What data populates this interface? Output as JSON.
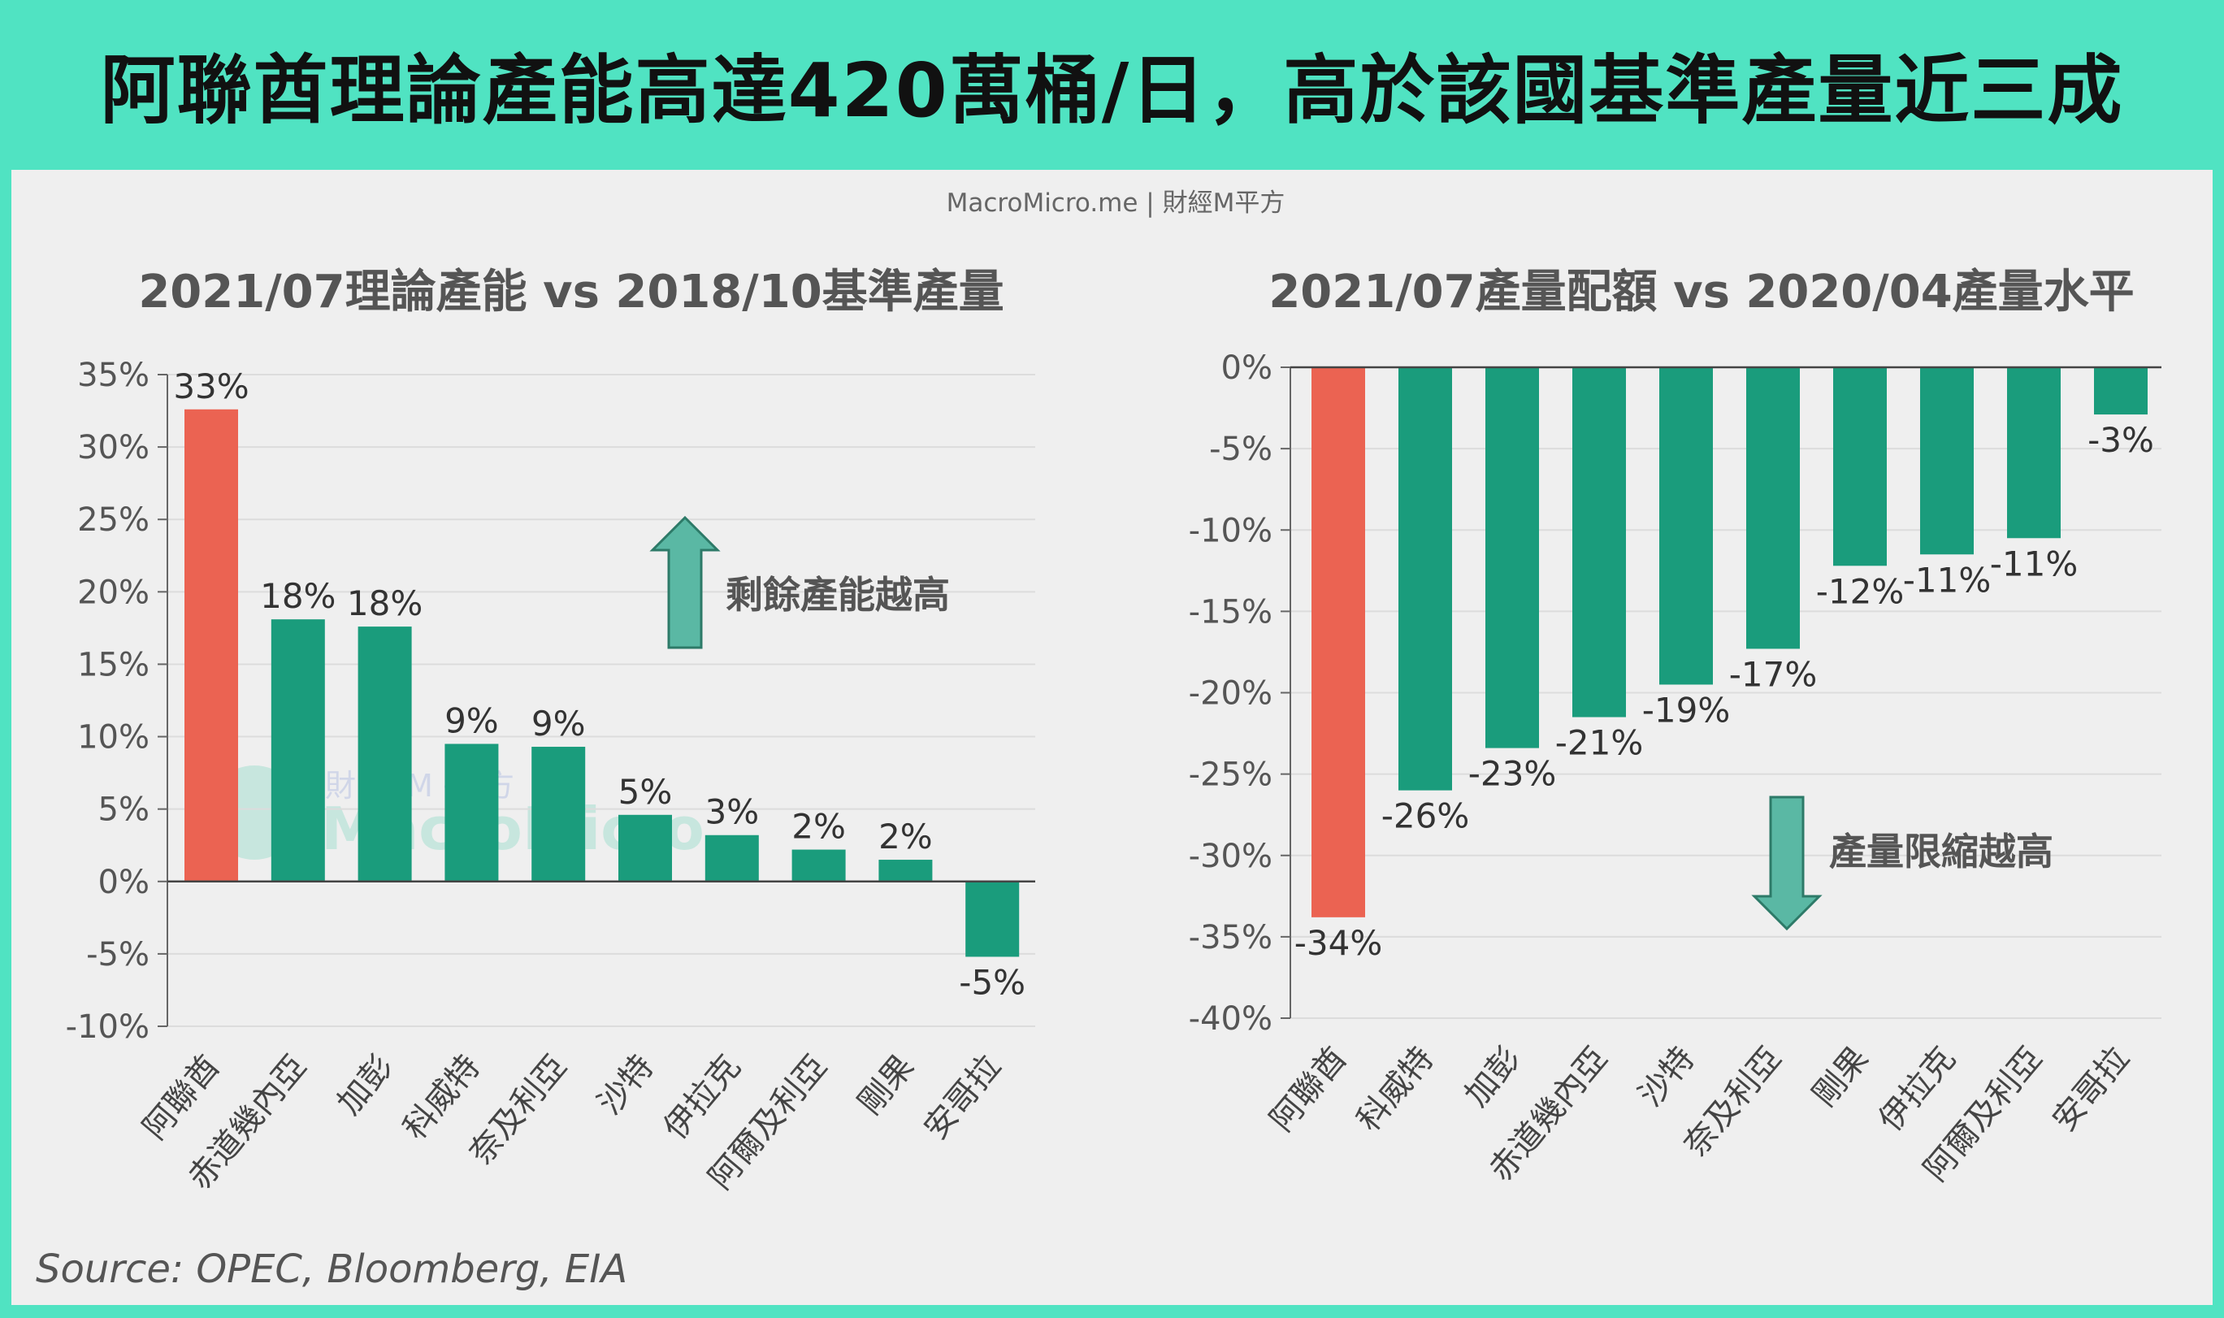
{
  "header": {
    "title": "阿聯酋理論產能高達420萬桶/日，高於該國基準產量近三成"
  },
  "watermark": "MacroMicro.me | 財經M平方",
  "logo_watermark": {
    "line1": "財 經 M 平 方",
    "line2": "MacroMicro"
  },
  "source": "Source: OPEC, Bloomberg, EIA",
  "colors": {
    "header_bg": "#50e3c2",
    "highlight": "#eb6352",
    "bar": "#1a9c7c",
    "arrow": "#5ab8a4"
  },
  "chart_data": [
    {
      "type": "bar",
      "title": "2021/07理論產能 vs 2018/10基準產量",
      "categories": [
        "阿聯酋",
        "赤道幾內亞",
        "加彭",
        "科威特",
        "奈及利亞",
        "沙特",
        "伊拉克",
        "阿爾及利亞",
        "剛果",
        "安哥拉"
      ],
      "values": [
        32.6,
        18.1,
        17.6,
        9.5,
        9.3,
        4.6,
        3.2,
        2.2,
        1.5,
        -5.2
      ],
      "data_labels": [
        "33%",
        "18%",
        "18%",
        "9%",
        "9%",
        "5%",
        "3%",
        "2%",
        "2%",
        "-5%"
      ],
      "ylim": [
        -10,
        35
      ],
      "yticks": [
        35,
        30,
        25,
        20,
        15,
        10,
        5,
        0,
        -5,
        -10
      ],
      "ytick_labels": [
        "35%",
        "30%",
        "25%",
        "20%",
        "15%",
        "10%",
        "5%",
        "0%",
        "-5%",
        "-10%"
      ],
      "highlight_index": 0,
      "annotation": {
        "text": "剩餘產能越高",
        "arrow": "up"
      },
      "grid": true
    },
    {
      "type": "bar",
      "title": "2021/07產量配額 vs 2020/04產量水平",
      "categories": [
        "阿聯酋",
        "科威特",
        "加彭",
        "赤道幾內亞",
        "沙特",
        "奈及利亞",
        "剛果",
        "伊拉克",
        "阿爾及利亞",
        "安哥拉"
      ],
      "values": [
        -33.8,
        -26.0,
        -23.4,
        -21.5,
        -19.5,
        -17.3,
        -12.2,
        -11.5,
        -10.5,
        -2.9
      ],
      "data_labels": [
        "-34%",
        "-26%",
        "-23%",
        "-21%",
        "-19%",
        "-17%",
        "-12%",
        "-11%",
        "-11%",
        "-3%"
      ],
      "ylim": [
        -40,
        0
      ],
      "yticks": [
        0,
        -5,
        -10,
        -15,
        -20,
        -25,
        -30,
        -35,
        -40
      ],
      "ytick_labels": [
        "0%",
        "-5%",
        "-10%",
        "-15%",
        "-20%",
        "-25%",
        "-30%",
        "-35%",
        "-40%"
      ],
      "highlight_index": 0,
      "annotation": {
        "text": "產量限縮越高",
        "arrow": "down"
      },
      "grid": true
    }
  ]
}
